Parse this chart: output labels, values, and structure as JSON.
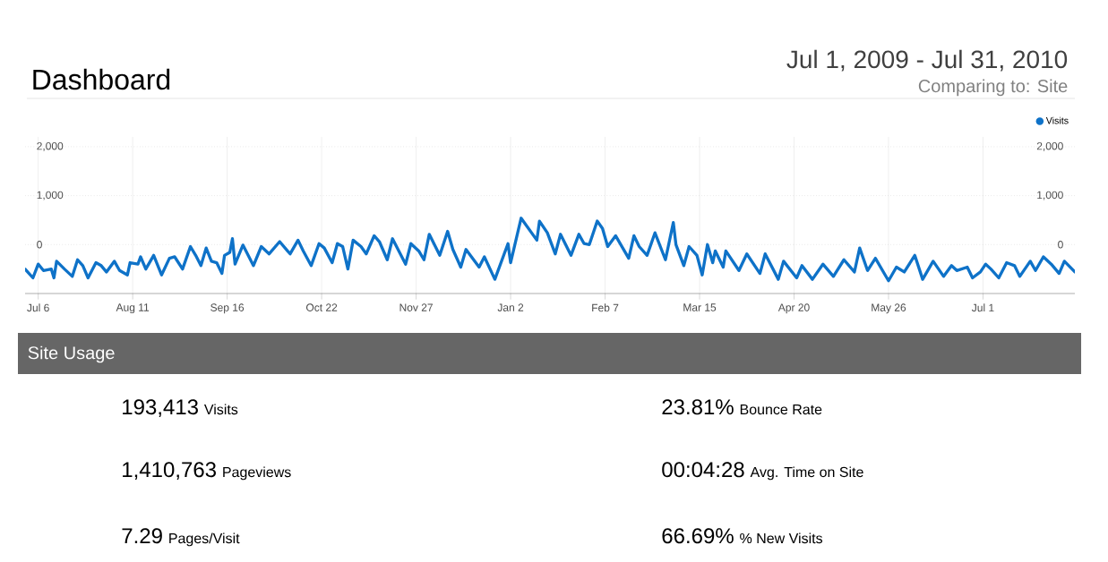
{
  "chart_data": [
    {
      "type": "line",
      "title": "Dashboard",
      "annotations": [
        "Jul 1, 2009 - Jul 31, 2010",
        "Comparing to: Site"
      ],
      "x": [
        "2009-07-01",
        "2009-07-04",
        "2009-07-06",
        "2009-07-08",
        "2009-07-11",
        "2009-07-12",
        "2009-07-13",
        "2009-07-16",
        "2009-07-19",
        "2009-07-21",
        "2009-07-23",
        "2009-07-25",
        "2009-07-28",
        "2009-07-30",
        "2009-08-01",
        "2009-08-04",
        "2009-08-06",
        "2009-08-09",
        "2009-08-10",
        "2009-08-13",
        "2009-08-14",
        "2009-08-16",
        "2009-08-19",
        "2009-08-22",
        "2009-08-25",
        "2009-08-27",
        "2009-08-30",
        "2009-09-02",
        "2009-09-04",
        "2009-09-06",
        "2009-09-08",
        "2009-09-10",
        "2009-09-12",
        "2009-09-14",
        "2009-09-15",
        "2009-09-17",
        "2009-09-18",
        "2009-09-19",
        "2009-09-22",
        "2009-09-26",
        "2009-09-29",
        "2009-10-02",
        "2009-10-06",
        "2009-10-09",
        "2009-10-10",
        "2009-10-13",
        "2009-10-15",
        "2009-10-18",
        "2009-10-21",
        "2009-10-23",
        "2009-10-26",
        "2009-10-28",
        "2009-10-30",
        "2009-11-01",
        "2009-11-03",
        "2009-11-06",
        "2009-11-08",
        "2009-11-11",
        "2009-11-13",
        "2009-11-16",
        "2009-11-18",
        "2009-11-23",
        "2009-11-25",
        "2009-11-28",
        "2009-11-30",
        "2009-12-02",
        "2009-12-06",
        "2009-12-09",
        "2009-12-11",
        "2009-12-14",
        "2009-12-16",
        "2009-12-21",
        "2009-12-23",
        "2009-12-27",
        "2010-01-01",
        "2010-01-02",
        "2010-01-06",
        "2010-01-12",
        "2010-01-13",
        "2010-01-16",
        "2010-01-19",
        "2010-01-21",
        "2010-01-25",
        "2010-01-28",
        "2010-01-30",
        "2010-02-01",
        "2010-02-04",
        "2010-02-06",
        "2010-02-08",
        "2010-02-11",
        "2010-02-16",
        "2010-02-18",
        "2010-02-20",
        "2010-02-23",
        "2010-02-26",
        "2010-03-02",
        "2010-03-05",
        "2010-03-06",
        "2010-03-09",
        "2010-03-11",
        "2010-03-14",
        "2010-03-16",
        "2010-03-18",
        "2010-03-20",
        "2010-03-21",
        "2010-03-24",
        "2010-03-25",
        "2010-03-30",
        "2010-04-02",
        "2010-04-07",
        "2010-04-09",
        "2010-04-14",
        "2010-04-16",
        "2010-04-21",
        "2010-04-23",
        "2010-04-27",
        "2010-05-01",
        "2010-05-05",
        "2010-05-09",
        "2010-05-13",
        "2010-05-15",
        "2010-05-18",
        "2010-05-21",
        "2010-05-26",
        "2010-05-29",
        "2010-06-01",
        "2010-06-05",
        "2010-06-08",
        "2010-06-12",
        "2010-06-16",
        "2010-06-19",
        "2010-06-21",
        "2010-06-25",
        "2010-06-27",
        "2010-06-30",
        "2010-07-02",
        "2010-07-04",
        "2010-07-07",
        "2010-07-10",
        "2010-07-13",
        "2010-07-15",
        "2010-07-19",
        "2010-07-21",
        "2010-07-24",
        "2010-07-27",
        "2010-07-30",
        "2010-08-01",
        "2010-08-05"
      ],
      "series": [
        {
          "name": "Visits",
          "color": "#0e72c8",
          "values": [
            -500,
            -680,
            -400,
            -530,
            -500,
            -680,
            -340,
            -500,
            -650,
            -310,
            -430,
            -680,
            -370,
            -430,
            -560,
            -340,
            -530,
            -620,
            -370,
            -400,
            -250,
            -500,
            -220,
            -620,
            -280,
            -250,
            -500,
            -40,
            -220,
            -430,
            -70,
            -340,
            -370,
            -590,
            -220,
            -160,
            120,
            -400,
            -10,
            -430,
            -40,
            -190,
            60,
            -130,
            -190,
            90,
            -130,
            -430,
            20,
            -70,
            -370,
            20,
            -40,
            -500,
            90,
            -40,
            -190,
            180,
            60,
            -310,
            120,
            -400,
            20,
            -130,
            -310,
            210,
            -220,
            270,
            -100,
            -460,
            -100,
            -460,
            -250,
            -710,
            20,
            -370,
            540,
            90,
            480,
            240,
            -190,
            210,
            -220,
            210,
            20,
            0,
            480,
            330,
            -40,
            180,
            -280,
            180,
            -40,
            -220,
            240,
            -310,
            450,
            0,
            -430,
            -40,
            -220,
            -620,
            0,
            -370,
            -130,
            -460,
            -130,
            -530,
            -190,
            -590,
            -190,
            -710,
            -340,
            -680,
            -430,
            -710,
            -400,
            -650,
            -310,
            -560,
            -70,
            -530,
            -280,
            -740,
            -460,
            -560,
            -220,
            -710,
            -340,
            -650,
            -430,
            -530,
            -460,
            -680,
            -560,
            -400,
            -500,
            -680,
            -370,
            -430,
            -650,
            -340,
            -530,
            -250,
            -400,
            -590,
            -340,
            -560
          ]
        }
      ],
      "xlim": [
        "2009-07-01",
        "2010-08-05"
      ],
      "xticks": [
        {
          "value": "2009-07-06",
          "label": "Jul 6"
        },
        {
          "value": "2009-08-11",
          "label": "Aug 11"
        },
        {
          "value": "2009-09-16",
          "label": "Sep 16"
        },
        {
          "value": "2009-10-22",
          "label": "Oct 22"
        },
        {
          "value": "2009-11-27",
          "label": "Nov 27"
        },
        {
          "value": "2010-01-02",
          "label": "Jan 2"
        },
        {
          "value": "2010-02-07",
          "label": "Feb 7"
        },
        {
          "value": "2010-03-15",
          "label": "Mar 15"
        },
        {
          "value": "2010-04-20",
          "label": "Apr 20"
        },
        {
          "value": "2010-05-26",
          "label": "May 26"
        },
        {
          "value": "2010-07-01",
          "label": "Jul 1"
        }
      ],
      "ylim": [
        -1000,
        2200
      ],
      "yticks": [
        0,
        {
          "value": 1000,
          "label": "1,000"
        },
        {
          "value": 2000,
          "label": "2,000"
        }
      ],
      "y2lim": [
        -1000,
        2200
      ],
      "y2ticks": [
        0,
        {
          "value": 1000,
          "label": "1,000"
        },
        {
          "value": 2000,
          "label": "2,000"
        }
      ],
      "grid": true,
      "legend": "top right",
      "marker": "none",
      "line_style": "solid"
    },
    {
      "type": "other",
      "title": "Site Usage",
      "annotations": [
        "193,413",
        "Visits",
        "23.81%",
        "Bounce Rate",
        "1,410,763",
        "Pageviews",
        "00:04:28",
        "Avg. Time on Site",
        "7.29",
        "Pages/Visit",
        "66.69%",
        "% New Visits"
      ]
    }
  ]
}
